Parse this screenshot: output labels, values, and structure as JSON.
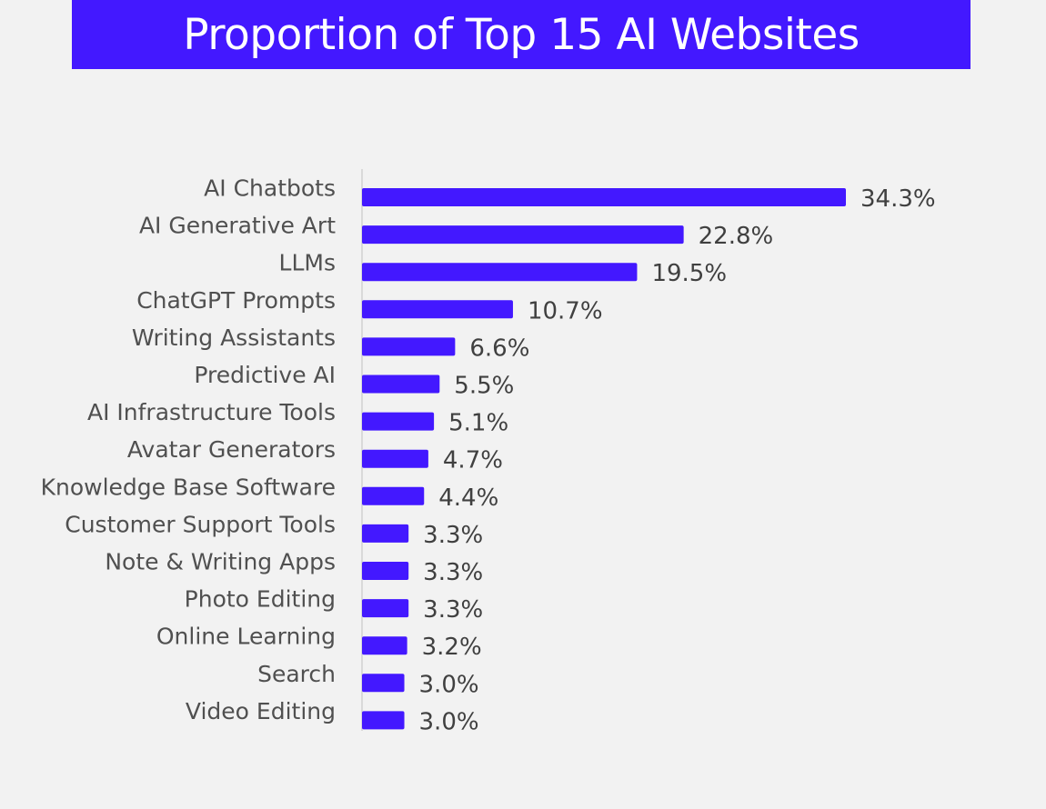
{
  "title": "Proportion of Top 15 AI Websites",
  "colors": {
    "accent": "#4318ff",
    "background": "#f2f2f2",
    "axis": "#d9d9d9",
    "category_text": "#505050",
    "value_text": "#404040"
  },
  "chart_data": {
    "type": "bar",
    "orientation": "horizontal",
    "title": "Proportion of Top 15 AI Websites",
    "xlabel": "",
    "ylabel": "",
    "grid": false,
    "legend": "none",
    "value_format": "percent",
    "xlim": [
      0,
      34.3
    ],
    "categories": [
      "AI Chatbots",
      "AI Generative Art",
      "LLMs",
      "ChatGPT Prompts",
      "Writing Assistants",
      "Predictive AI",
      "AI Infrastructure Tools",
      "Avatar Generators",
      "Knowledge Base Software",
      "Customer Support Tools",
      "Note & Writing Apps",
      "Photo Editing",
      "Online Learning",
      "Search",
      "Video Editing"
    ],
    "values": [
      34.3,
      22.8,
      19.5,
      10.7,
      6.6,
      5.5,
      5.1,
      4.7,
      4.4,
      3.3,
      3.3,
      3.3,
      3.2,
      3.0,
      3.0
    ],
    "value_labels": [
      "34.3%",
      "22.8%",
      "19.5%",
      "10.7%",
      "6.6%",
      "5.5%",
      "5.1%",
      "4.7%",
      "4.4%",
      "3.3%",
      "3.3%",
      "3.3%",
      "3.2%",
      "3.0%",
      "3.0%"
    ]
  }
}
